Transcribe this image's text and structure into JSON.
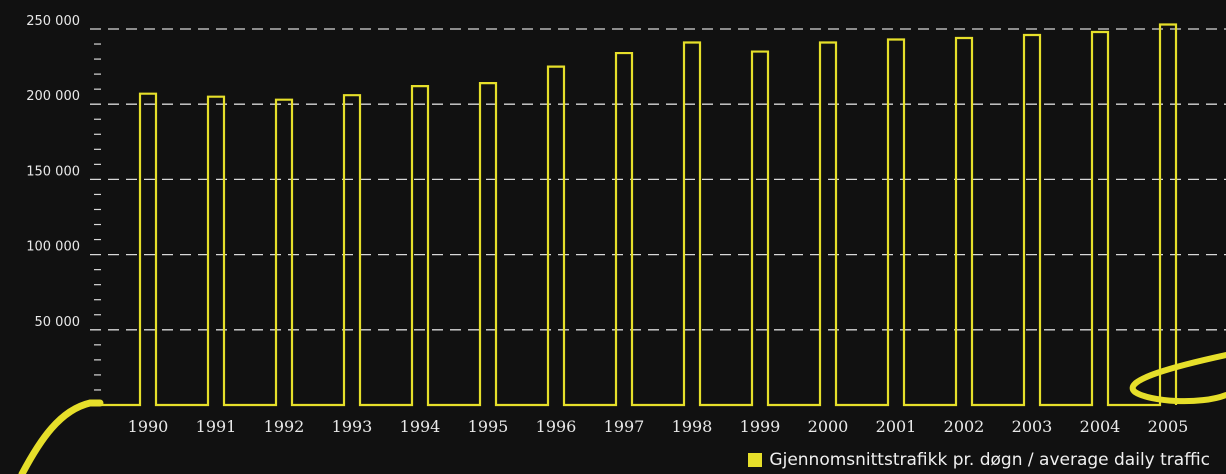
{
  "chart_data": {
    "type": "bar",
    "categories": [
      "1990",
      "1991",
      "1992",
      "1993",
      "1994",
      "1995",
      "1996",
      "1997",
      "1998",
      "1999",
      "2000",
      "2001",
      "2002",
      "2003",
      "2004",
      "2005"
    ],
    "series": [
      {
        "name": "Gjennomsnittstrafikk pr. døgn / average daily traffic",
        "values": [
          207000,
          205000,
          203000,
          206000,
          212000,
          214000,
          225000,
          234000,
          241000,
          235000,
          241000,
          243000,
          244000,
          246000,
          248000,
          253000
        ]
      }
    ],
    "yticks": [
      "250 000",
      "200 000",
      "150 000",
      "100 000",
      "50 000"
    ],
    "ytick_values": [
      250000,
      200000,
      150000,
      100000,
      50000
    ],
    "ylim": [
      0,
      250000
    ],
    "grid": true,
    "legend_position": "bottom-right",
    "colors": {
      "bar": "#e6df2a",
      "background": "#111111",
      "grid": "#d8d8d8",
      "text": "#e8e8e8"
    }
  }
}
